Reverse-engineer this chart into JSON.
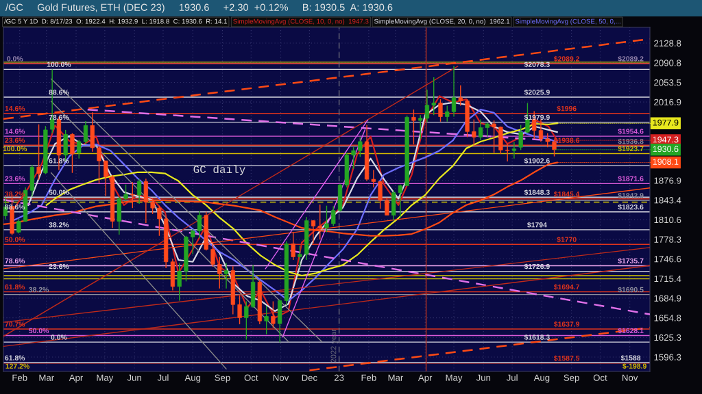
{
  "chart_data": {
    "type": "candlestick",
    "title": "/GC     Gold Futures, ETH (DEC 23)     1930.6     +2.30  +0.12%     B: 1930.5  A: 1930.6",
    "subtitle": "/GC 5 Y 1D  D: 8/17/23  O: 1922.4  H: 1932.9  L: 1918.8  C: 1930.6  R: 14.1",
    "x": [
      "2022-01-17",
      "2022-01-24",
      "2022-01-31",
      "2022-02-07",
      "2022-02-14",
      "2022-02-21",
      "2022-02-28",
      "2022-03-07",
      "2022-03-14",
      "2022-03-21",
      "2022-03-28",
      "2022-04-04",
      "2022-04-11",
      "2022-04-18",
      "2022-04-25",
      "2022-05-02",
      "2022-05-09",
      "2022-05-16",
      "2022-05-23",
      "2022-05-30",
      "2022-06-06",
      "2022-06-13",
      "2022-06-20",
      "2022-06-27",
      "2022-07-04",
      "2022-07-11",
      "2022-07-18",
      "2022-07-25",
      "2022-08-01",
      "2022-08-08",
      "2022-08-15",
      "2022-08-22",
      "2022-08-29",
      "2022-09-05",
      "2022-09-12",
      "2022-09-19",
      "2022-09-26",
      "2022-10-03",
      "2022-10-10",
      "2022-10-17",
      "2022-10-24",
      "2022-10-31",
      "2022-11-07",
      "2022-11-14",
      "2022-11-21",
      "2022-11-28",
      "2022-12-05",
      "2022-12-12",
      "2022-12-19",
      "2022-12-26",
      "2023-01-02",
      "2023-01-09",
      "2023-01-16",
      "2023-01-23",
      "2023-01-30",
      "2023-02-06",
      "2023-02-13",
      "2023-02-20",
      "2023-02-27",
      "2023-03-06",
      "2023-03-13",
      "2023-03-20",
      "2023-03-27",
      "2023-04-03",
      "2023-04-10",
      "2023-04-17",
      "2023-04-24",
      "2023-05-01",
      "2023-05-08",
      "2023-05-15",
      "2023-05-22",
      "2023-05-29",
      "2023-06-05",
      "2023-06-12",
      "2023-06-19",
      "2023-06-26",
      "2023-07-03",
      "2023-07-10",
      "2023-07-17",
      "2023-07-24",
      "2023-07-31",
      "2023-08-07",
      "2023-08-14"
    ],
    "ohlc": [
      [
        1817,
        1848,
        1811,
        1832
      ],
      [
        1833,
        1853,
        1785,
        1788
      ],
      [
        1790,
        1812,
        1788,
        1808
      ],
      [
        1808,
        1865,
        1807,
        1860
      ],
      [
        1860,
        1904,
        1849,
        1900
      ],
      [
        1900,
        1976,
        1878,
        1889
      ],
      [
        1890,
        1973,
        1888,
        1966
      ],
      [
        1967,
        2078,
        1960,
        1985
      ],
      [
        1985,
        1990,
        1895,
        1921
      ],
      [
        1921,
        1966,
        1910,
        1958
      ],
      [
        1958,
        1960,
        1890,
        1923
      ],
      [
        1925,
        1948,
        1915,
        1945
      ],
      [
        1945,
        1982,
        1940,
        1974
      ],
      [
        1974,
        1998,
        1927,
        1934
      ],
      [
        1934,
        1938,
        1872,
        1911
      ],
      [
        1911,
        1911,
        1850,
        1883
      ],
      [
        1883,
        1886,
        1797,
        1808
      ],
      [
        1808,
        1849,
        1786,
        1846
      ],
      [
        1846,
        1870,
        1842,
        1853
      ],
      [
        1853,
        1874,
        1830,
        1852
      ],
      [
        1852,
        1879,
        1837,
        1875
      ],
      [
        1875,
        1880,
        1805,
        1840
      ],
      [
        1840,
        1847,
        1820,
        1830
      ],
      [
        1830,
        1834,
        1784,
        1812
      ],
      [
        1812,
        1815,
        1732,
        1742
      ],
      [
        1742,
        1747,
        1697,
        1703
      ],
      [
        1703,
        1740,
        1681,
        1727
      ],
      [
        1727,
        1784,
        1711,
        1782
      ],
      [
        1782,
        1795,
        1754,
        1792
      ],
      [
        1792,
        1825,
        1780,
        1818
      ],
      [
        1818,
        1824,
        1760,
        1762
      ],
      [
        1762,
        1773,
        1734,
        1738
      ],
      [
        1738,
        1750,
        1700,
        1723
      ],
      [
        1723,
        1740,
        1700,
        1728
      ],
      [
        1728,
        1735,
        1660,
        1675
      ],
      [
        1675,
        1689,
        1645,
        1655
      ],
      [
        1655,
        1680,
        1622,
        1672
      ],
      [
        1672,
        1737,
        1670,
        1710
      ],
      [
        1710,
        1713,
        1645,
        1650
      ],
      [
        1650,
        1673,
        1630,
        1657
      ],
      [
        1657,
        1680,
        1640,
        1646
      ],
      [
        1646,
        1683,
        1618,
        1681
      ],
      [
        1681,
        1775,
        1674,
        1771
      ],
      [
        1771,
        1790,
        1745,
        1750
      ],
      [
        1750,
        1768,
        1732,
        1754
      ],
      [
        1754,
        1815,
        1745,
        1809
      ],
      [
        1809,
        1810,
        1772,
        1800
      ],
      [
        1800,
        1836,
        1778,
        1797
      ],
      [
        1797,
        1834,
        1790,
        1804
      ],
      [
        1804,
        1833,
        1800,
        1826
      ],
      [
        1826,
        1871,
        1824,
        1869
      ],
      [
        1869,
        1925,
        1865,
        1921
      ],
      [
        1921,
        1935,
        1897,
        1929
      ],
      [
        1929,
        1953,
        1918,
        1945
      ],
      [
        1945,
        1975,
        1876,
        1879
      ],
      [
        1879,
        1895,
        1865,
        1875
      ],
      [
        1875,
        1876,
        1829,
        1843
      ],
      [
        1843,
        1848,
        1818,
        1818
      ],
      [
        1818,
        1860,
        1809,
        1856
      ],
      [
        1856,
        1870,
        1814,
        1868
      ],
      [
        1868,
        1992,
        1868,
        1989
      ],
      [
        1989,
        2003,
        1940,
        1983
      ],
      [
        1983,
        1993,
        1950,
        1987
      ],
      [
        1987,
        2040,
        1980,
        2011
      ],
      [
        2011,
        2063,
        1993,
        2015
      ],
      [
        2015,
        2022,
        1981,
        1990
      ],
      [
        1990,
        2010,
        1981,
        1999
      ],
      [
        1999,
        2085,
        1990,
        2025
      ],
      [
        2025,
        2048,
        2010,
        2019
      ],
      [
        2019,
        2022,
        1953,
        1963
      ],
      [
        1963,
        1985,
        1936,
        1953
      ],
      [
        1953,
        1985,
        1947,
        1970
      ],
      [
        1970,
        1979,
        1954,
        1977
      ],
      [
        1977,
        1983,
        1925,
        1971
      ],
      [
        1971,
        1972,
        1923,
        1930
      ],
      [
        1930,
        1941,
        1910,
        1929
      ],
      [
        1929,
        1944,
        1915,
        1932
      ],
      [
        1935,
        1975,
        1930,
        1962
      ],
      [
        1962,
        2015,
        1960,
        1985
      ],
      [
        1985,
        2000,
        1950,
        1965
      ],
      [
        1965,
        1985,
        1945,
        1950
      ],
      [
        1950,
        1960,
        1935,
        1945
      ],
      [
        1945,
        1948,
        1918.8,
        1930.6
      ]
    ],
    "colors": [
      "#24a524",
      "#ff4a1c",
      "#24a524",
      "#24a524",
      "#24a524",
      "#ff4a1c",
      "#24a524",
      "#24a524",
      "#ff4a1c",
      "#24a524",
      "#ff4a1c",
      "#24a524",
      "#24a524",
      "#ff4a1c",
      "#ff4a1c",
      "#ff4a1c",
      "#ff4a1c",
      "#24a524",
      "#24a524",
      "#ff4a1c",
      "#24a524",
      "#ff4a1c",
      "#ff4a1c",
      "#ff4a1c",
      "#ff4a1c",
      "#ff4a1c",
      "#24a524",
      "#24a524",
      "#24a524",
      "#24a524",
      "#ff4a1c",
      "#ff4a1c",
      "#ff4a1c",
      "#24a524",
      "#ff4a1c",
      "#ff4a1c",
      "#24a524",
      "#24a524",
      "#ff4a1c",
      "#24a524",
      "#ff4a1c",
      "#24a524",
      "#24a524",
      "#ff4a1c",
      "#24a524",
      "#24a524",
      "#ff4a1c",
      "#ff4a1c",
      "#24a524",
      "#24a524",
      "#24a524",
      "#24a524",
      "#24a524",
      "#24a524",
      "#ff4a1c",
      "#ff4a1c",
      "#ff4a1c",
      "#ff4a1c",
      "#24a524",
      "#24a524",
      "#24a524",
      "#ff4a1c",
      "#24a524",
      "#24a524",
      "#24a524",
      "#ff4a1c",
      "#24a524",
      "#24a524",
      "#ff4a1c",
      "#ff4a1c",
      "#ff4a1c",
      "#24a524",
      "#24a524",
      "#ff4a1c",
      "#ff4a1c",
      "#ff4a1c",
      "#24a524",
      "#24a524",
      "#24a524",
      "#ff4a1c",
      "#ff4a1c",
      "#ff4a1c",
      "#ff4a1c"
    ],
    "series": [
      {
        "type": "line",
        "name": "SimpleMovingAvg (CLOSE, 10, 0, no)  1947.3",
        "color": "#d42020",
        "x": [
          "2022-01-26",
          "2022-02-10",
          "2022-02-24",
          "2022-03-10",
          "2022-03-25",
          "2022-04-08",
          "2022-04-22",
          "2022-05-07",
          "2022-05-21",
          "2022-06-04",
          "2022-06-19",
          "2022-07-03",
          "2022-07-17",
          "2022-08-01",
          "2022-08-15",
          "2022-08-29",
          "2022-09-13",
          "2022-09-27",
          "2022-10-11",
          "2022-10-26",
          "2022-11-09",
          "2022-11-23",
          "2022-12-08",
          "2022-12-22",
          "2023-01-05",
          "2023-01-20",
          "2023-02-03",
          "2023-02-17",
          "2023-03-04",
          "2023-03-18",
          "2023-04-01",
          "2023-04-16",
          "2023-04-30",
          "2023-05-14",
          "2023-05-29",
          "2023-06-12",
          "2023-06-26",
          "2023-07-11",
          "2023-07-25",
          "2023-08-08",
          "2023-08-17"
        ],
        "values": [
          1829,
          1864,
          1905,
          1974,
          1946,
          1939,
          1954,
          1876,
          1835,
          1852,
          1846,
          1823,
          1724,
          1762,
          1801,
          1734,
          1718,
          1670,
          1697,
          1655,
          1665,
          1773,
          1795,
          1812,
          1835,
          1923,
          1954,
          1870,
          1835,
          1887,
          1984,
          2028,
          2016,
          2022,
          1978,
          1972,
          1941,
          1954,
          1984,
          1972,
          1947.3
        ]
      },
      {
        "type": "line",
        "name": "SimpleMovingAvg (CLOSE, 20, 0, no)  1962.1",
        "color": "#d8d8e4",
        "x": [
          "2022-02-10",
          "2022-02-24",
          "2022-03-10",
          "2022-03-25",
          "2022-04-08",
          "2022-04-22",
          "2022-05-07",
          "2022-05-21",
          "2022-06-04",
          "2022-06-19",
          "2022-07-03",
          "2022-07-17",
          "2022-08-01",
          "2022-08-15",
          "2022-08-29",
          "2022-09-13",
          "2022-09-27",
          "2022-10-11",
          "2022-10-26",
          "2022-11-09",
          "2022-11-23",
          "2022-12-08",
          "2022-12-22",
          "2023-01-05",
          "2023-01-20",
          "2023-02-03",
          "2023-02-17",
          "2023-03-04",
          "2023-03-18",
          "2023-04-01",
          "2023-04-16",
          "2023-04-30",
          "2023-05-14",
          "2023-05-29",
          "2023-06-12",
          "2023-06-26",
          "2023-07-11",
          "2023-07-25",
          "2023-08-08",
          "2023-08-17"
        ],
        "values": [
          1835,
          1893,
          1941,
          1955,
          1939,
          1938,
          1887,
          1857,
          1850,
          1844,
          1801,
          1745,
          1742,
          1782,
          1756,
          1707,
          1688,
          1681,
          1665,
          1676,
          1745,
          1784,
          1812,
          1831,
          1881,
          1915,
          1879,
          1846,
          1899,
          1993,
          2012,
          2016,
          2012,
          1999,
          1972,
          1962,
          1958,
          1972,
          1966,
          1962.1
        ]
      },
      {
        "type": "line",
        "name": "SimpleMovingAvg (CLOSE, 50, 0,...",
        "color": "#6e6eff",
        "x": [
          "2022-01-26",
          "2022-02-10",
          "2022-02-24",
          "2022-03-10",
          "2022-03-25",
          "2022-04-08",
          "2022-04-22",
          "2022-05-07",
          "2022-05-21",
          "2022-06-04",
          "2022-06-19",
          "2022-07-03",
          "2022-07-17",
          "2022-08-01",
          "2022-08-15",
          "2022-08-29",
          "2022-09-13",
          "2022-09-27",
          "2022-10-11",
          "2022-10-26",
          "2022-11-09",
          "2022-11-23",
          "2022-12-08",
          "2022-12-22",
          "2023-01-05",
          "2023-01-20",
          "2023-02-03",
          "2023-02-17",
          "2023-03-04",
          "2023-03-18",
          "2023-04-01",
          "2023-04-16",
          "2023-04-30",
          "2023-05-14",
          "2023-05-29",
          "2023-06-12",
          "2023-06-26",
          "2023-07-11",
          "2023-07-25",
          "2023-08-08",
          "2023-08-17"
        ],
        "values": [
          1810,
          1821,
          1835,
          1879,
          1919,
          1938,
          1940,
          1929,
          1905,
          1881,
          1860,
          1835,
          1814,
          1795,
          1776,
          1758,
          1745,
          1729,
          1713,
          1697,
          1681,
          1697,
          1718,
          1740,
          1762,
          1795,
          1852,
          1887,
          1899,
          1908,
          1917,
          1929,
          1947,
          1982,
          2003,
          1997,
          1972,
          1962,
          1954,
          1950,
          1944
        ]
      },
      {
        "type": "line",
        "color": "#e8e81e",
        "x": [
          "2022-03-01",
          "2022-03-10",
          "2022-03-25",
          "2022-04-08",
          "2022-04-22",
          "2022-05-07",
          "2022-05-21",
          "2022-06-04",
          "2022-06-19",
          "2022-07-03",
          "2022-07-17",
          "2022-08-01",
          "2022-08-15",
          "2022-08-29",
          "2022-09-13",
          "2022-09-27",
          "2022-10-11",
          "2022-10-26",
          "2022-11-09",
          "2022-11-23",
          "2022-12-08",
          "2022-12-22",
          "2023-01-05",
          "2023-01-20",
          "2023-02-03",
          "2023-02-17",
          "2023-03-04",
          "2023-03-18",
          "2023-04-01",
          "2023-04-16",
          "2023-04-30",
          "2023-05-14",
          "2023-05-29",
          "2023-06-12",
          "2023-06-26",
          "2023-07-11",
          "2023-07-25",
          "2023-08-08",
          "2023-08-17"
        ],
        "values": [
          1835,
          1846,
          1861,
          1870,
          1878,
          1884,
          1887,
          1891,
          1891,
          1889,
          1876,
          1852,
          1835,
          1814,
          1795,
          1771,
          1752,
          1737,
          1726,
          1720,
          1724,
          1731,
          1737,
          1753,
          1774,
          1794,
          1813,
          1835,
          1852,
          1881,
          1902,
          1933,
          1945,
          1952,
          1960,
          1967,
          1977,
          1976,
          1977.9
        ]
      },
      {
        "type": "line",
        "color": "#ff4a14",
        "x": [
          "2022-01-15",
          "2022-01-26",
          "2022-02-10",
          "2022-02-24",
          "2022-03-10",
          "2022-03-25",
          "2022-04-08",
          "2022-04-22",
          "2022-05-07",
          "2022-05-21",
          "2022-06-04",
          "2022-06-19",
          "2022-07-03",
          "2022-07-17",
          "2022-08-01",
          "2022-08-15",
          "2022-08-29",
          "2022-09-13",
          "2022-09-27",
          "2022-10-11",
          "2022-10-26",
          "2022-11-09",
          "2022-11-23",
          "2022-12-08",
          "2022-12-22",
          "2023-01-05",
          "2023-01-20",
          "2023-02-03",
          "2023-02-17",
          "2023-03-04",
          "2023-03-18",
          "2023-04-01",
          "2023-04-16",
          "2023-04-30",
          "2023-05-14",
          "2023-05-29",
          "2023-06-12",
          "2023-06-26",
          "2023-07-11",
          "2023-07-25",
          "2023-08-08",
          "2023-08-17"
        ],
        "values": [
          1803,
          1805,
          1810,
          1814,
          1818,
          1821,
          1827,
          1833,
          1836,
          1840,
          1842,
          1843,
          1843,
          1842,
          1841,
          1840,
          1837,
          1834,
          1830,
          1826,
          1815,
          1806,
          1797,
          1793,
          1791,
          1788,
          1786,
          1784,
          1784,
          1785,
          1787,
          1795,
          1806,
          1822,
          1835,
          1843,
          1853,
          1866,
          1878,
          1892,
          1905,
          1908.1
        ]
      },
      {
        "type": "line",
        "color": "#ff4a14",
        "line_style": "dashed",
        "x": [
          "2022-01-15",
          "2023-11-22"
        ],
        "values": [
          1986,
          2137
        ]
      },
      {
        "type": "line",
        "color": "#e070e8",
        "line_style": "dashed",
        "x": [
          "2022-04-13",
          "2023-08-10"
        ],
        "values": [
          2003,
          1947
        ]
      },
      {
        "type": "line",
        "color": "#e070e8",
        "line_style": "dashed",
        "x": [
          "2022-01-15",
          "2023-11-22"
        ],
        "values": [
          1844,
          1660
        ]
      },
      {
        "type": "line",
        "color": "#ff4a14",
        "line_style": "dashed",
        "x": [
          "2022-12-01",
          "2023-11-22"
        ],
        "values": [
          1577,
          1640
        ]
      },
      {
        "type": "line",
        "color": "#ff4a14",
        "x": [
          "2022-01-15",
          "2023-11-22"
        ],
        "values": [
          1731,
          1864
        ]
      },
      {
        "type": "line",
        "color": "#c02a1a",
        "x": [
          "2022-01-15",
          "2023-11-22"
        ],
        "values": [
          1612,
          1736
        ]
      },
      {
        "type": "line",
        "color": "#c02a1a",
        "x": [
          "2022-01-15",
          "2023-11-22"
        ],
        "values": [
          1648,
          1765
        ]
      },
      {
        "type": "line",
        "color": "#c02a1a",
        "x": [
          "2022-01-15",
          "2023-05-05"
        ],
        "values": [
          1627,
          2084
        ]
      },
      {
        "type": "line",
        "color": "#8a8a8a",
        "x": [
          "2022-03-06",
          "2022-12-14"
        ],
        "values": [
          2060,
          1619
        ]
      },
      {
        "type": "line",
        "color": "#8a8a8a",
        "x": [
          "2022-03-06",
          "2022-11-09"
        ],
        "values": [
          2018,
          1619
        ]
      },
      {
        "type": "line",
        "color": "#8a8a8a",
        "x": [
          "2022-03-06",
          "2022-09-05"
        ],
        "values": [
          1890,
          1579
        ]
      },
      {
        "type": "line",
        "color": "#e060f0",
        "x": [
          "2022-10-16",
          "2023-01-31"
        ],
        "values": [
          1731,
          1984
        ]
      },
      {
        "type": "line",
        "color": "#e060f0",
        "x": [
          "2022-11-03",
          "2023-01-28"
        ],
        "values": [
          1626,
          1966
        ]
      }
    ],
    "xlim": [
      "2022-01-15",
      "2023-11-22"
    ],
    "xticks": [
      {
        "value": "2022-02-01",
        "label": "Feb"
      },
      {
        "value": "2022-03-01",
        "label": "Mar"
      },
      {
        "value": "2022-04-01",
        "label": "Apr"
      },
      {
        "value": "2022-05-01",
        "label": "May"
      },
      {
        "value": "2022-06-01",
        "label": "Jun"
      },
      {
        "value": "2022-07-01",
        "label": "Jul"
      },
      {
        "value": "2022-08-01",
        "label": "Aug"
      },
      {
        "value": "2022-09-01",
        "label": "Sep"
      },
      {
        "value": "2022-10-01",
        "label": "Oct"
      },
      {
        "value": "2022-11-01",
        "label": "Nov"
      },
      {
        "value": "2022-12-01",
        "label": "Dec"
      },
      {
        "value": "2023-01-01",
        "label": "23"
      },
      {
        "value": "2023-02-01",
        "label": "Feb"
      },
      {
        "value": "2023-03-01",
        "label": "Mar"
      },
      {
        "value": "2023-04-01",
        "label": "Apr"
      },
      {
        "value": "2023-05-01",
        "label": "May"
      },
      {
        "value": "2023-06-01",
        "label": "Jun"
      },
      {
        "value": "2023-07-01",
        "label": "Jul"
      },
      {
        "value": "2023-08-01",
        "label": "Aug"
      },
      {
        "value": "2023-09-01",
        "label": "Sep"
      },
      {
        "value": "2023-10-01",
        "label": "Oct"
      },
      {
        "value": "2023-11-01",
        "label": "Nov"
      }
    ],
    "ylim": [
      1575.4,
      2159.8
    ],
    "yticks": [
      2128.8,
      2090.8,
      2053.5,
      2016.9,
      1876.9,
      1843.4,
      1810.6,
      1778.3,
      1746.6,
      1715.4,
      1684.9,
      1654.8,
      1625.3,
      1596.3
    ],
    "log": true,
    "grid": true,
    "legend": "top",
    "ref_lines": [
      {
        "axis": "y",
        "value": 2092,
        "color": "#c8c000"
      },
      {
        "axis": "y",
        "value": 2089.2,
        "color": "#9484ac"
      },
      {
        "axis": "y",
        "value": 2089.2,
        "color": "#e0341c"
      },
      {
        "axis": "y",
        "value": 2078.3,
        "color": "#d8d8e0"
      },
      {
        "axis": "y",
        "value": 2025.9,
        "color": "#d8d8e0"
      },
      {
        "axis": "y",
        "value": 1996,
        "color": "#e0341c"
      },
      {
        "axis": "y",
        "value": 1979.9,
        "color": "#d8d8e0"
      },
      {
        "axis": "y",
        "value": 1954.6,
        "color": "#d85ad8"
      },
      {
        "axis": "y",
        "value": 1938.6,
        "color": "#e0341c"
      },
      {
        "axis": "y",
        "value": 1936.8,
        "color": "#8c8c9c"
      },
      {
        "axis": "y",
        "value": 1923.7,
        "color": "#d4b800"
      },
      {
        "axis": "y",
        "value": 1902.6,
        "color": "#d8d8e0"
      },
      {
        "axis": "y",
        "value": 1871.6,
        "color": "#d85ad8"
      },
      {
        "axis": "y",
        "value": 1848.3,
        "color": "#d8d8e0"
      },
      {
        "axis": "y",
        "value": 1845.4,
        "color": "#e0341c"
      },
      {
        "axis": "y",
        "value": 1842.9,
        "color": "#8c8c9c"
      },
      {
        "axis": "y",
        "value": 1840,
        "color": "#d4c800",
        "line_style": "dashed"
      },
      {
        "axis": "y",
        "value": 1823.6,
        "color": "#d8d8e0"
      },
      {
        "axis": "y",
        "value": 1794,
        "color": "#d8d8e0"
      },
      {
        "axis": "y",
        "value": 1770,
        "color": "#e0341c"
      },
      {
        "axis": "y",
        "value": 1735.7,
        "color": "#f0a8f0"
      },
      {
        "axis": "y",
        "value": 1726.9,
        "color": "#d8d8e0"
      },
      {
        "axis": "y",
        "value": 1720,
        "color": "#d4c800"
      },
      {
        "axis": "y",
        "value": 1715,
        "color": "#d4c800"
      },
      {
        "axis": "y",
        "value": 1694.7,
        "color": "#e0341c"
      },
      {
        "axis": "y",
        "value": 1690.5,
        "color": "#8c8c9c"
      },
      {
        "axis": "y",
        "value": 1637.9,
        "color": "#e0341c"
      },
      {
        "axis": "y",
        "value": 1628.1,
        "color": "#d85ad8"
      },
      {
        "axis": "y",
        "value": 1618.3,
        "color": "#d8d8e0"
      },
      {
        "axis": "y",
        "value": 1587.5,
        "color": "#e0341c"
      },
      {
        "axis": "y",
        "value": 1588,
        "color": "#d8d8e0"
      },
      {
        "axis": "x",
        "value": "2023-01-01",
        "label": "2022 year",
        "color": "#6a6a7a",
        "line_style": "dashed"
      },
      {
        "axis": "x",
        "value": "2023-04-02",
        "color": "#b83020"
      }
    ],
    "annotations": [
      {
        "text": "0.0%",
        "x": "2022-01-27",
        "y": 2089.2
      },
      {
        "text": "$2089.2",
        "x": "2023-08-27",
        "y": 2089.2
      },
      {
        "text": "$2089.2",
        "x": "2023-11-02",
        "y": 2089.2
      },
      {
        "text": "100.0%",
        "x": "2022-03-14",
        "y": 2078.3
      },
      {
        "text": "$2078.3",
        "x": "2023-07-27",
        "y": 2078.3
      },
      {
        "text": "88.6%",
        "x": "2022-03-14",
        "y": 2025.9
      },
      {
        "text": "$2025.9",
        "x": "2023-07-27",
        "y": 2025.9
      },
      {
        "text": "14.6%",
        "x": "2022-01-27",
        "y": 1996
      },
      {
        "text": "$1996",
        "x": "2023-08-27",
        "y": 1996
      },
      {
        "text": "78.6%",
        "x": "2022-03-14",
        "y": 1979.9
      },
      {
        "text": "$1979.9",
        "x": "2023-07-27",
        "y": 1979.9
      },
      {
        "text": "14.6%",
        "x": "2022-01-27",
        "y": 1954.6
      },
      {
        "text": "$1954.6",
        "x": "2023-11-02",
        "y": 1954.6
      },
      {
        "text": "23.6%",
        "x": "2022-01-27",
        "y": 1938.6
      },
      {
        "text": "$1938.6",
        "x": "2023-08-27",
        "y": 1938.6
      },
      {
        "text": "$1936.8",
        "x": "2023-11-02",
        "y": 1936.8
      },
      {
        "text": "100.0%",
        "x": "2022-01-27",
        "y": 1923.7
      },
      {
        "text": "$1923.7",
        "x": "2023-11-02",
        "y": 1923.7
      },
      {
        "text": "61.8%",
        "x": "2022-03-14",
        "y": 1902.6
      },
      {
        "text": "$1902.6",
        "x": "2023-07-27",
        "y": 1902.6
      },
      {
        "text": "23.6%",
        "x": "2022-01-27",
        "y": 1871.6
      },
      {
        "text": "$1871.6",
        "x": "2023-11-02",
        "y": 1871.6
      },
      {
        "text": "50.0%",
        "x": "2022-03-14",
        "y": 1848.3
      },
      {
        "text": "$1848.3",
        "x": "2023-07-27",
        "y": 1848.3
      },
      {
        "text": "38.2%",
        "x": "2022-01-27",
        "y": 1845.4
      },
      {
        "text": "$1845.4",
        "x": "2023-08-27",
        "y": 1845.4
      },
      {
        "text": "$1842.9",
        "x": "2023-11-02",
        "y": 1842.9
      },
      {
        "text": "88.6%",
        "x": "2022-01-27",
        "y": 1823.6
      },
      {
        "text": "$1823.6",
        "x": "2023-11-02",
        "y": 1823.6
      },
      {
        "text": "38.2%",
        "x": "2022-03-14",
        "y": 1794
      },
      {
        "text": "$1794",
        "x": "2023-07-27",
        "y": 1794
      },
      {
        "text": "50.0%",
        "x": "2022-01-27",
        "y": 1770
      },
      {
        "text": "$1770",
        "x": "2023-08-27",
        "y": 1770
      },
      {
        "text": "78.6%",
        "x": "2022-01-27",
        "y": 1735.7
      },
      {
        "text": "$1735.7",
        "x": "2023-11-02",
        "y": 1735.7
      },
      {
        "text": "23.6%",
        "x": "2022-03-14",
        "y": 1726.9
      },
      {
        "text": "$1726.9",
        "x": "2023-07-27",
        "y": 1726.9
      },
      {
        "text": "61.8%",
        "x": "2022-01-27",
        "y": 1694.7
      },
      {
        "text": "$1694.7",
        "x": "2023-08-27",
        "y": 1694.7
      },
      {
        "text": "38.2%",
        "x": "2022-02-21",
        "y": 1690.5
      },
      {
        "text": "$1690.5",
        "x": "2023-11-02",
        "y": 1690.5
      },
      {
        "text": "70.7%",
        "x": "2022-01-27",
        "y": 1637.9
      },
      {
        "text": "$1637.9",
        "x": "2023-08-27",
        "y": 1637.9
      },
      {
        "text": "50.0%",
        "x": "2022-02-21",
        "y": 1628.1
      },
      {
        "text": "$1628.1",
        "x": "2023-11-02",
        "y": 1628.1
      },
      {
        "text": "0.0%",
        "x": "2022-03-14",
        "y": 1618.3
      },
      {
        "text": "$1618.3",
        "x": "2023-07-27",
        "y": 1618.3
      },
      {
        "text": "$1587.5",
        "x": "2023-08-27",
        "y": 1587.5
      },
      {
        "text": "61.8%",
        "x": "2022-01-27",
        "y": 1588
      },
      {
        "text": "$1588",
        "x": "2023-11-02",
        "y": 1588
      },
      {
        "text": "1977.9",
        "x": "2023-08-17",
        "y": 1977.9
      },
      {
        "text": "1947.3",
        "x": "2023-08-17",
        "y": 1947.3
      },
      {
        "text": "1930.6",
        "x": "2023-08-14",
        "y": 1930.6
      },
      {
        "text": "1908.1",
        "x": "2023-08-17",
        "y": 1908.1
      },
      "GC daily",
      "127.2%",
      "$-198.9"
    ]
  }
}
